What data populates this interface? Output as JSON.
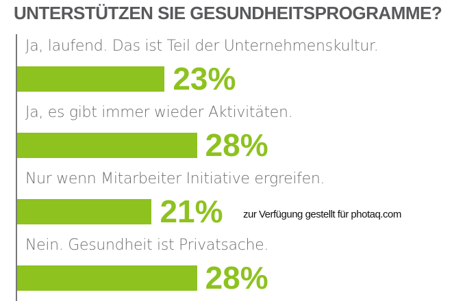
{
  "chart_data": {
    "type": "bar",
    "orientation": "horizontal",
    "title": "UNTERSTÜTZEN SIE GESUNDHEITSPROGRAMME?",
    "categories": [
      "Ja, laufend. Das ist Teil der Unternehmenskultur.",
      "Ja, es gibt immer wieder Aktivitäten.",
      "Nur wenn Mitarbeiter Initiative ergreifen.",
      "Nein. Gesundheit ist Privatsache."
    ],
    "values": [
      23,
      28,
      21,
      28
    ],
    "value_labels": [
      "23%",
      "28%",
      "21%",
      "28%"
    ],
    "unit": "%",
    "xlim": [
      0,
      100
    ],
    "grid": false,
    "bar_color": "#8dc21f"
  },
  "watermark": "zur Verfügung gestellt für photaq.com"
}
